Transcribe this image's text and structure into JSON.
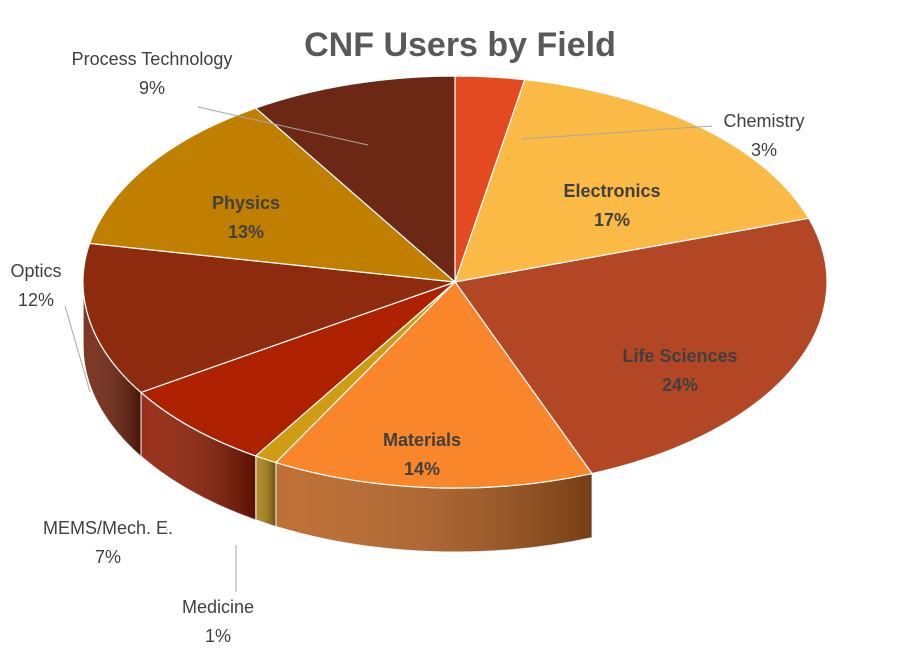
{
  "chart_data": {
    "type": "pie",
    "title": "CNF Users by Field",
    "start_slice": "Chemistry",
    "direction": "clockwise",
    "slices": [
      {
        "name": "Chemistry",
        "value": 3,
        "label": "3%",
        "color": "#e34a22",
        "side_color": "#b23a1a",
        "text_color": "#404040"
      },
      {
        "name": "Electronics",
        "value": 17,
        "label": "17%",
        "color": "#fbba45",
        "side_color": "#c08a2c",
        "text_color": "#404040"
      },
      {
        "name": "Life Sciences",
        "value": 24,
        "label": "24%",
        "color": "#b34624",
        "side_color": "#4a1a10",
        "text_color": "#404040"
      },
      {
        "name": "Materials",
        "value": 14,
        "label": "14%",
        "color": "#f9862a",
        "side_color": "#b75f1e",
        "text_color": "#404040"
      },
      {
        "name": "Medicine",
        "value": 1,
        "label": "1%",
        "color": "#cf9c13",
        "side_color": "#a9810f",
        "text_color": "#404040"
      },
      {
        "name": "MEMS/Mech. E.",
        "value": 7,
        "label": "7%",
        "color": "#ad2000",
        "side_color": "#8e1a00",
        "text_color": "#404040"
      },
      {
        "name": "Optics",
        "value": 12,
        "label": "12%",
        "color": "#8e2a0e",
        "side_color": "#6e1f0a",
        "text_color": "#404040"
      },
      {
        "name": "Physics",
        "value": 13,
        "label": "13%",
        "color": "#c17f00",
        "side_color": "#8f5e00",
        "text_color": "#404040"
      },
      {
        "name": "Process Technology",
        "value": 9,
        "label": "9%",
        "color": "#6c2815",
        "side_color": "#4e1c0e",
        "text_color": "#404040"
      }
    ]
  }
}
